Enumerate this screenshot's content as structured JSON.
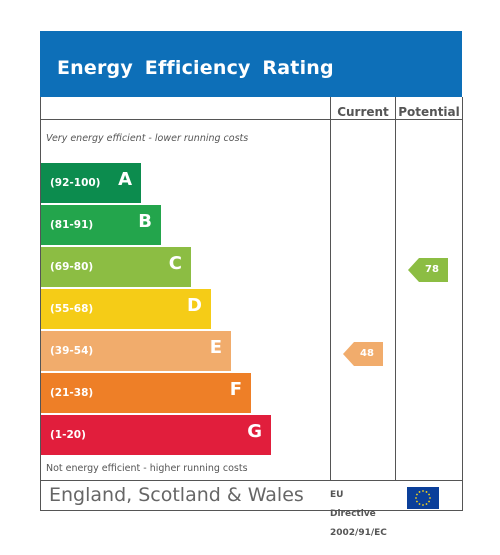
{
  "title": "Energy Efficiency Rating",
  "columns": {
    "current": "Current",
    "potential": "Potential"
  },
  "notes": {
    "top": "Very energy efficient - lower running costs",
    "bottom": "Not energy efficient - higher running costs"
  },
  "bands": [
    {
      "range": "(92-100)",
      "letter": "A",
      "color": "#0c8c4e"
    },
    {
      "range": "(81-91)",
      "letter": "B",
      "color": "#23a54c"
    },
    {
      "range": "(69-80)",
      "letter": "C",
      "color": "#8cbd43"
    },
    {
      "range": "(55-68)",
      "letter": "D",
      "color": "#f5cc17"
    },
    {
      "range": "(39-54)",
      "letter": "E",
      "color": "#f1ac6c"
    },
    {
      "range": "(21-38)",
      "letter": "F",
      "color": "#ee7f27"
    },
    {
      "range": "(1-20)",
      "letter": "G",
      "color": "#e11e3c"
    }
  ],
  "ratings": {
    "current": {
      "value": "48",
      "band": "E",
      "color": "#f1ac6c"
    },
    "potential": {
      "value": "78",
      "band": "C",
      "color": "#8cbd43"
    }
  },
  "footer": {
    "country": "England, Scotland & Wales",
    "directive_line1": "EU",
    "directive_line2": "Directive",
    "directive_line3": "2002/91/EC",
    "flag_color": "#0b3f9a",
    "flag_star_color": "#f4d31a"
  }
}
